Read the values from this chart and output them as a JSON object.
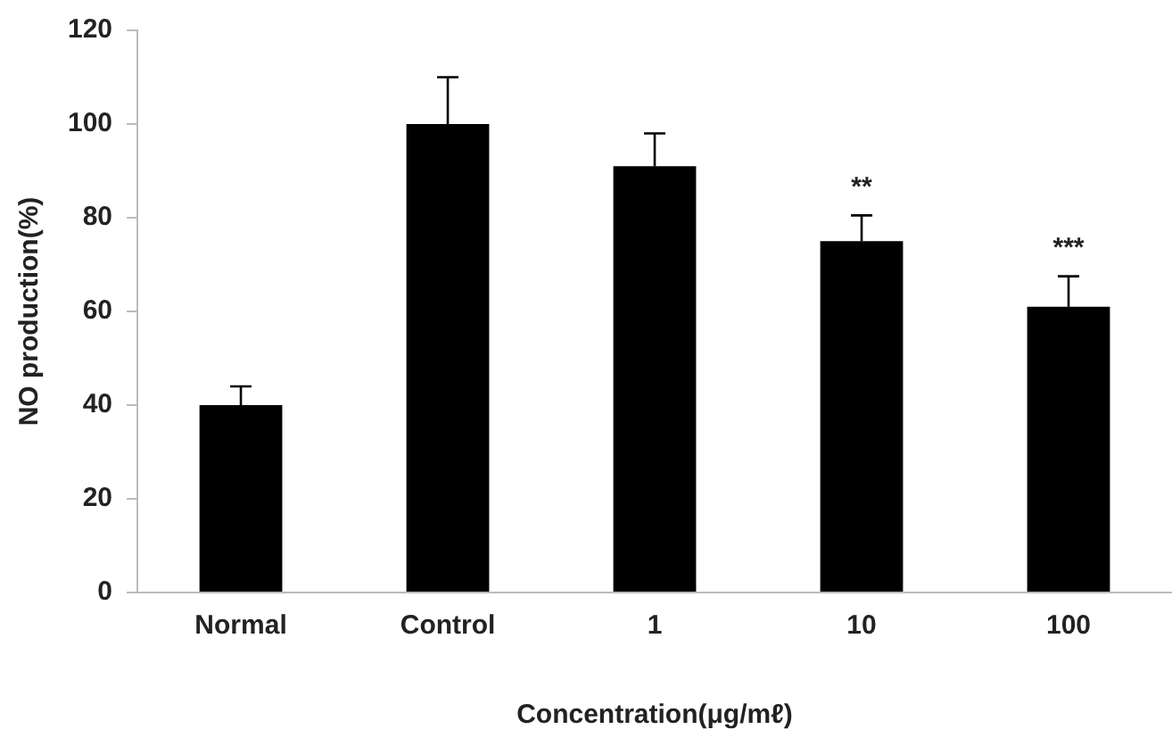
{
  "chart_data": {
    "type": "bar",
    "xlabel": "Concentration(μg/mℓ)",
    "ylabel": "NO production(%)",
    "categories": [
      "Normal",
      "Control",
      "1",
      "10",
      "100"
    ],
    "values": [
      40,
      100,
      91,
      75,
      61
    ],
    "errors": [
      [
        40,
        44
      ],
      [
        100,
        110
      ],
      [
        91,
        98
      ],
      [
        75,
        80.5
      ],
      [
        61,
        67.5
      ]
    ],
    "color": "#000000",
    "ylim": [
      0,
      120
    ],
    "yticks": [
      0,
      20,
      40,
      60,
      80,
      100,
      120
    ],
    "grid": false,
    "legend": false,
    "annotations": [
      {
        "text": "**",
        "x": "10",
        "y": 80.5
      },
      {
        "text": "***",
        "x": "100",
        "y": 67.5
      }
    ]
  }
}
